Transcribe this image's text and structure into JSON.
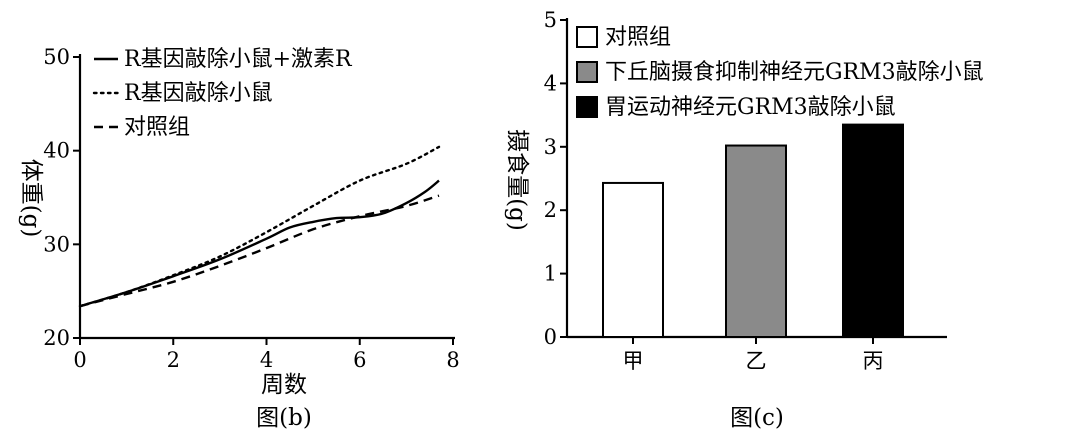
{
  "chart_data": [
    {
      "type": "line",
      "caption": "图(b)",
      "xlabel": "周数",
      "ylabel": "体重(g)",
      "xlim": [
        0,
        8
      ],
      "ylim": [
        20,
        50
      ],
      "xticks": [
        0,
        2,
        4,
        6,
        8
      ],
      "yticks": [
        20,
        30,
        40,
        50
      ],
      "grid": false,
      "legend_position": "top-left",
      "series": [
        {
          "name": "R基因敲除小鼠+激素R",
          "style": "solid",
          "x": [
            0,
            1,
            2,
            3,
            4,
            4.5,
            5,
            5.5,
            6,
            6.5,
            7,
            7.4,
            7.7
          ],
          "y": [
            23.4,
            24.9,
            26.6,
            28.4,
            30.6,
            31.8,
            32.4,
            32.8,
            32.9,
            33.3,
            34.4,
            35.6,
            36.8
          ]
        },
        {
          "name": "R基因敲除小鼠",
          "style": "dotted",
          "x": [
            0,
            1,
            2,
            3,
            4,
            5,
            6,
            7,
            7.7
          ],
          "y": [
            23.4,
            24.9,
            26.7,
            28.7,
            31.3,
            34.1,
            36.8,
            38.6,
            40.4
          ]
        },
        {
          "name": "对照组",
          "style": "dashed",
          "x": [
            0,
            1,
            2,
            3,
            4,
            5,
            6,
            7,
            7.7
          ],
          "y": [
            23.4,
            24.7,
            26.0,
            27.7,
            29.6,
            31.6,
            33.0,
            34.1,
            35.2
          ]
        }
      ]
    },
    {
      "type": "bar",
      "caption": "图(c)",
      "xlabel": "",
      "ylabel": "摄食量(g)",
      "ylim": [
        0,
        5
      ],
      "yticks": [
        0,
        1,
        2,
        3,
        4,
        5
      ],
      "grid": false,
      "legend_position": "top-left",
      "categories": [
        "甲",
        "乙",
        "丙"
      ],
      "values": [
        2.43,
        3.02,
        3.35
      ],
      "colors": [
        "#ffffff",
        "#8a8a8a",
        "#000000"
      ],
      "legend": [
        {
          "label": "对照组",
          "color": "#ffffff"
        },
        {
          "label": "下丘脑摄食抑制神经元GRM3敲除小鼠",
          "color": "#8a8a8a"
        },
        {
          "label": "胃运动神经元GRM3敲除小鼠",
          "color": "#000000"
        }
      ]
    }
  ]
}
